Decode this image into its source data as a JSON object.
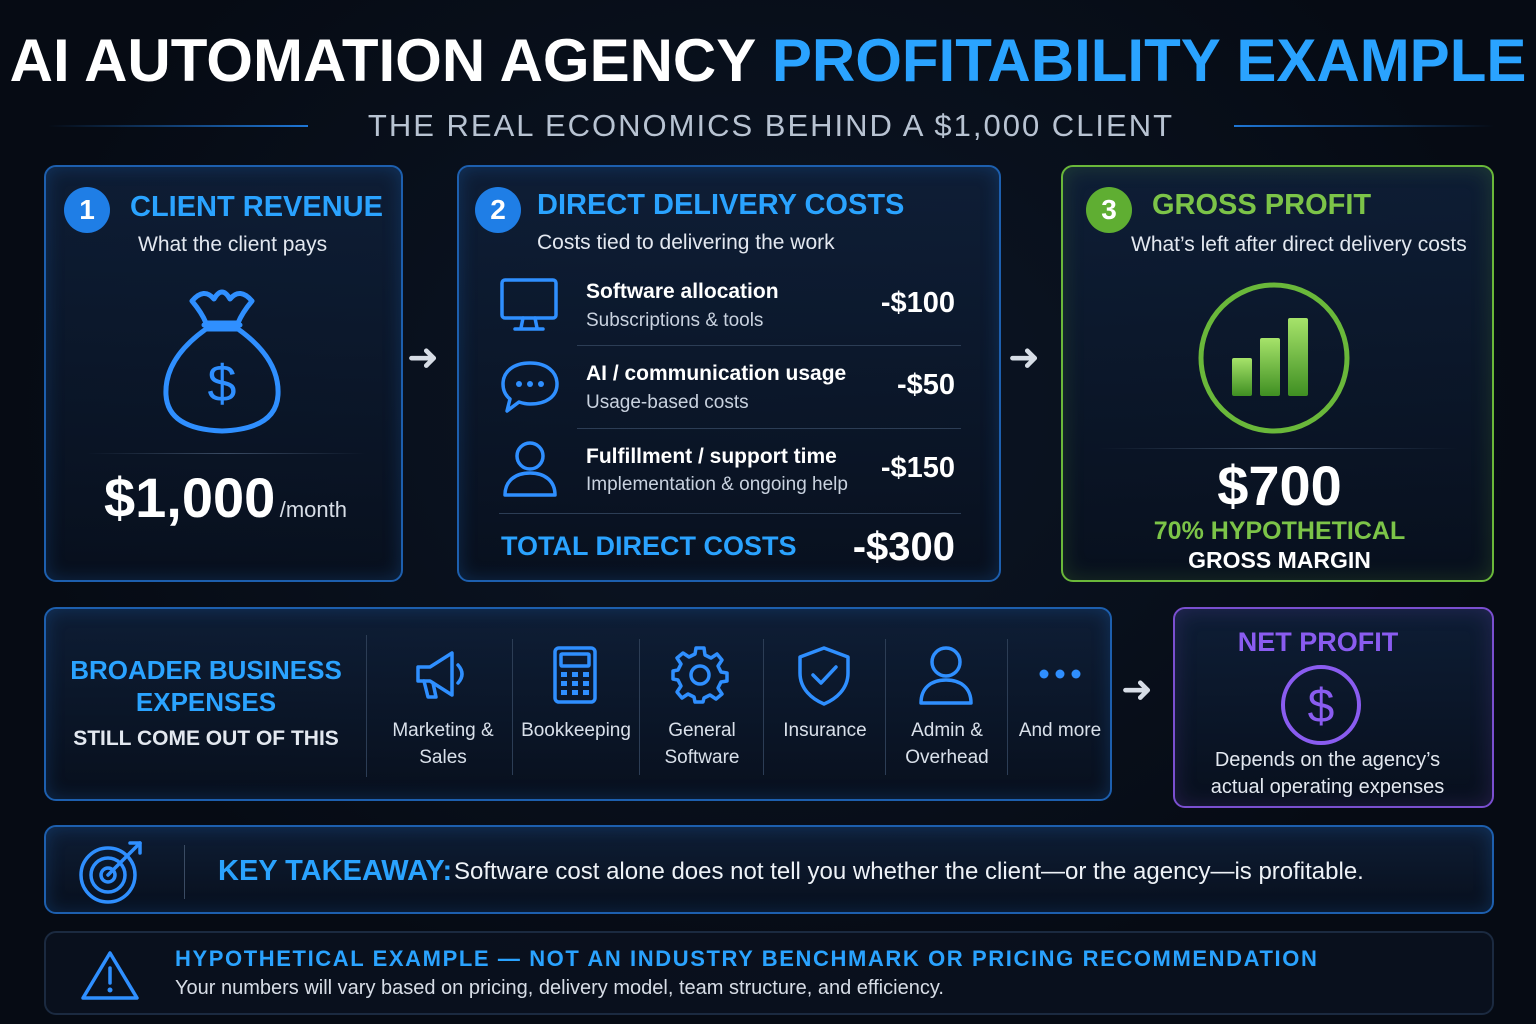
{
  "header": {
    "title_part1": "AI AUTOMATION AGENCY",
    "title_part2": "PROFITABILITY EXAMPLE",
    "subtitle": "THE REAL ECONOMICS BEHIND A $1,000 CLIENT"
  },
  "revenue": {
    "step": "1",
    "title": "CLIENT REVENUE",
    "subtitle": "What the client pays",
    "icon": "money-bag-icon",
    "amount": "$1,000",
    "unit": "/month"
  },
  "costs": {
    "step": "2",
    "title": "DIRECT DELIVERY COSTS",
    "subtitle": "Costs tied to delivering the work",
    "items": [
      {
        "name": "Software allocation",
        "desc": "Subscriptions & tools",
        "value": "-$100",
        "icon": "monitor-icon"
      },
      {
        "name": "AI / communication usage",
        "desc": "Usage-based costs",
        "value": "-$50",
        "icon": "chat-bubble-icon"
      },
      {
        "name": "Fulfillment / support time",
        "desc": "Implementation & ongoing help",
        "value": "-$150",
        "icon": "person-icon"
      }
    ],
    "total_label": "TOTAL DIRECT COSTS",
    "total_value": "-$300"
  },
  "gross": {
    "step": "3",
    "title": "GROSS PROFIT",
    "subtitle": "What’s left after direct delivery costs",
    "icon": "bar-chart-icon",
    "amount": "$700",
    "margin_line1": "70% HYPOTHETICAL",
    "margin_line2": "GROSS MARGIN"
  },
  "expenses": {
    "title_line1": "BROADER BUSINESS",
    "title_line2": "EXPENSES",
    "subtitle": "STILL COME OUT OF THIS",
    "items": [
      {
        "label1": "Marketing &",
        "label2": "Sales",
        "icon": "megaphone-icon"
      },
      {
        "label1": "Bookkeeping",
        "label2": "",
        "icon": "calculator-icon"
      },
      {
        "label1": "General",
        "label2": "Software",
        "icon": "gear-icon"
      },
      {
        "label1": "Insurance",
        "label2": "",
        "icon": "shield-check-icon"
      },
      {
        "label1": "Admin &",
        "label2": "Overhead",
        "icon": "user-icon"
      },
      {
        "label1": "And more",
        "label2": "",
        "icon": "ellipsis-icon"
      }
    ]
  },
  "net": {
    "title": "NET PROFIT",
    "icon": "dollar-circle-icon",
    "desc_line1": "Depends on the agency’s",
    "desc_line2": "actual operating expenses"
  },
  "takeaway": {
    "icon": "target-icon",
    "label": "KEY TAKEAWAY:",
    "text": "Software cost alone does not tell you whether the client—or the agency—is profitable."
  },
  "disclaimer": {
    "icon": "warning-icon",
    "title": "HYPOTHETICAL EXAMPLE — NOT AN INDUSTRY BENCHMARK OR PRICING RECOMMENDATION",
    "text": "Your numbers will vary based on pricing, delivery model, team structure, and efficiency."
  },
  "colors": {
    "accent_blue": "#2aa3ff",
    "accent_green": "#7cc448",
    "accent_purple": "#8a5cf0",
    "background": "#060b14"
  }
}
